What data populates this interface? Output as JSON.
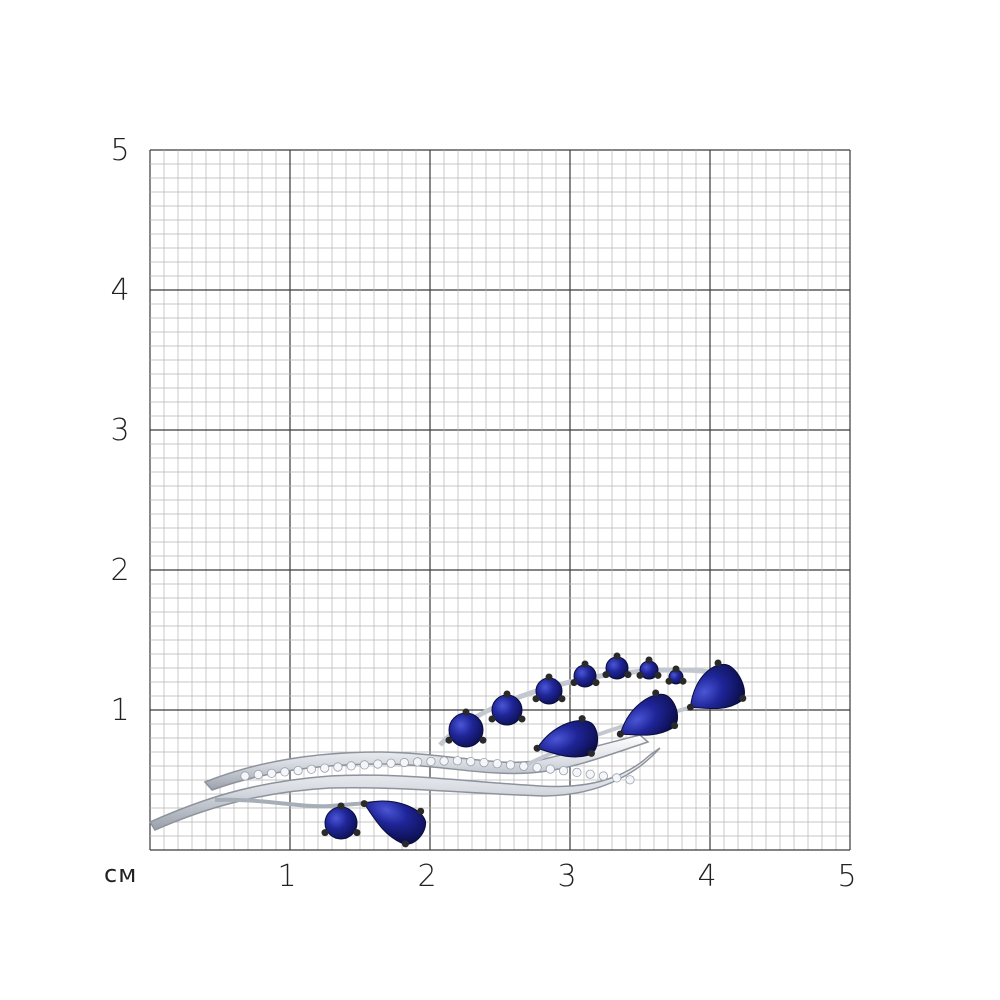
{
  "ruler": {
    "unit": "см",
    "y_labels": [
      "5",
      "4",
      "3",
      "2",
      "1"
    ],
    "x_labels": [
      "1",
      "2",
      "3",
      "4",
      "5"
    ],
    "range_cm": [
      0,
      5
    ]
  },
  "product": {
    "stone_color": "#1a1f8a",
    "prong_color": "#2a2a2a",
    "metal_color": "#e8eaee",
    "pave_color": "#f4f6fa"
  },
  "colors": {
    "grid_minor": "#b5b5b5",
    "grid_major": "#3a3a3a",
    "text": "#222222"
  }
}
